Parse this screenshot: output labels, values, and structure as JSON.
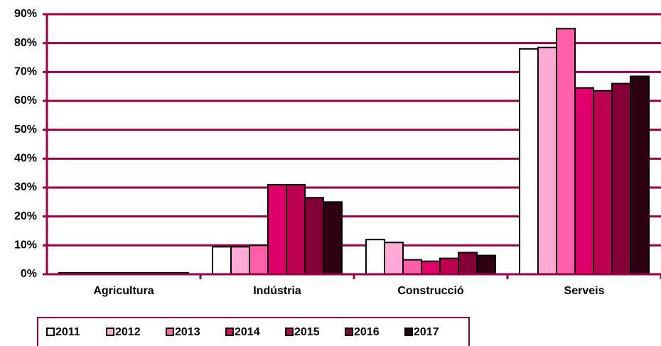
{
  "chart_data": {
    "type": "bar",
    "categories": [
      "Agricultura",
      "Indústria",
      "Construcció",
      "Serveis"
    ],
    "series": [
      {
        "name": "2011",
        "color": "#ffffff",
        "values": [
          0.5,
          9.5,
          12,
          78
        ]
      },
      {
        "name": "2012",
        "color": "#ffaad5",
        "values": [
          0.5,
          9.5,
          11,
          78.5
        ]
      },
      {
        "name": "2013",
        "color": "#ff5fa8",
        "values": [
          0.5,
          10,
          5,
          85
        ]
      },
      {
        "name": "2014",
        "color": "#e0006a",
        "values": [
          0.5,
          31,
          4.5,
          64.5
        ]
      },
      {
        "name": "2015",
        "color": "#bb0050",
        "values": [
          0.5,
          31,
          5.5,
          63.5
        ]
      },
      {
        "name": "2016",
        "color": "#850036",
        "values": [
          0.5,
          26.5,
          7.5,
          66
        ]
      },
      {
        "name": "2017",
        "color": "#2a0012",
        "values": [
          0.5,
          25,
          6.5,
          68.5
        ]
      }
    ],
    "ylim": [
      0,
      90
    ],
    "yticks": [
      {
        "value": 0,
        "label": "0%"
      },
      {
        "value": 10,
        "label": "10%"
      },
      {
        "value": 20,
        "label": "20%"
      },
      {
        "value": 30,
        "label": "30%"
      },
      {
        "value": 40,
        "label": "40%"
      },
      {
        "value": 50,
        "label": "50%"
      },
      {
        "value": 60,
        "label": "60%"
      },
      {
        "value": 70,
        "label": "70%"
      },
      {
        "value": 80,
        "label": "80%"
      },
      {
        "value": 90,
        "label": "90%"
      }
    ],
    "grid": true,
    "legend": "bottom"
  }
}
